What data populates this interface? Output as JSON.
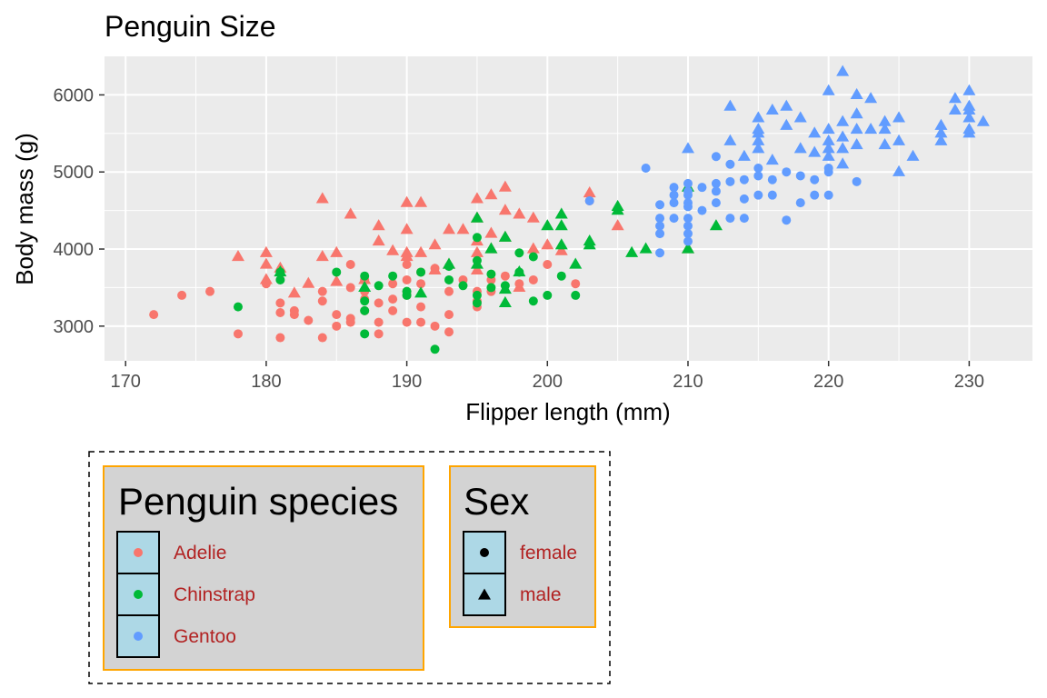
{
  "colors": {
    "panel_bg": "#EBEBEB",
    "grid": "#FFFFFF",
    "Adelie": "#F8766D",
    "Chinstrap": "#00BA38",
    "Gentoo": "#619CFF",
    "legend_bg": "#D3D3D3",
    "legend_border": "#FFA500",
    "legend_key_bg": "#ADD8E6",
    "legend_text": "#B22222"
  },
  "chart_data": {
    "type": "scatter",
    "title": "Penguin Size",
    "xlabel": "Flipper length (mm)",
    "ylabel": "Body mass (g)",
    "xlim": [
      168.5,
      234.5
    ],
    "ylim": [
      2550,
      6500
    ],
    "x_ticks": [
      170,
      180,
      190,
      200,
      210,
      220,
      230
    ],
    "y_ticks": [
      3000,
      4000,
      5000,
      6000
    ],
    "grid": true,
    "legend_position": "bottom",
    "legend": {
      "color_title": "Penguin species",
      "color_entries": [
        "Adelie",
        "Chinstrap",
        "Gentoo"
      ],
      "shape_title": "Sex",
      "shape_entries": [
        "female",
        "male"
      ]
    },
    "series": [
      {
        "species": "Adelie",
        "sex": "female",
        "points": [
          [
            172,
            3150
          ],
          [
            174,
            3400
          ],
          [
            176,
            3450
          ],
          [
            178,
            2900
          ],
          [
            180,
            3550
          ],
          [
            181,
            3300
          ],
          [
            181,
            3175
          ],
          [
            181,
            2850
          ],
          [
            182,
            3200
          ],
          [
            182,
            3150
          ],
          [
            183,
            3075
          ],
          [
            184,
            3325
          ],
          [
            184,
            2850
          ],
          [
            184,
            3450
          ],
          [
            185,
            3150
          ],
          [
            185,
            3000
          ],
          [
            186,
            3800
          ],
          [
            186,
            3500
          ],
          [
            186,
            3100
          ],
          [
            186,
            3050
          ],
          [
            187,
            3450
          ],
          [
            187,
            3600
          ],
          [
            187,
            3350
          ],
          [
            187,
            3200
          ],
          [
            188,
            3050
          ],
          [
            188,
            2900
          ],
          [
            188,
            3300
          ],
          [
            189,
            3350
          ],
          [
            189,
            3200
          ],
          [
            189,
            3550
          ],
          [
            190,
            3050
          ],
          [
            190,
            3400
          ],
          [
            190,
            3600
          ],
          [
            190,
            3450
          ],
          [
            190,
            3800
          ],
          [
            191,
            3700
          ],
          [
            191,
            3050
          ],
          [
            191,
            3250
          ],
          [
            191,
            3550
          ],
          [
            192,
            3000
          ],
          [
            192,
            3750
          ],
          [
            193,
            2925
          ],
          [
            193,
            3150
          ],
          [
            193,
            3450
          ],
          [
            194,
            3600
          ],
          [
            195,
            3250
          ],
          [
            195,
            3325
          ],
          [
            195,
            3450
          ],
          [
            196,
            3450
          ],
          [
            196,
            3600
          ],
          [
            197,
            3650
          ],
          [
            198,
            3550
          ],
          [
            199,
            3600
          ],
          [
            200,
            3800
          ],
          [
            202,
            3550
          ],
          [
            203,
            4625
          ]
        ]
      },
      {
        "species": "Adelie",
        "sex": "male",
        "points": [
          [
            178,
            3900
          ],
          [
            180,
            3950
          ],
          [
            180,
            3800
          ],
          [
            180,
            3600
          ],
          [
            181,
            3750
          ],
          [
            182,
            3425
          ],
          [
            183,
            3550
          ],
          [
            184,
            4650
          ],
          [
            184,
            3900
          ],
          [
            185,
            3950
          ],
          [
            185,
            3575
          ],
          [
            186,
            4450
          ],
          [
            187,
            3600
          ],
          [
            188,
            4300
          ],
          [
            188,
            4100
          ],
          [
            189,
            3975
          ],
          [
            190,
            3950
          ],
          [
            190,
            4600
          ],
          [
            190,
            4250
          ],
          [
            190,
            3900
          ],
          [
            191,
            4600
          ],
          [
            191,
            3950
          ],
          [
            192,
            4050
          ],
          [
            192,
            3725
          ],
          [
            193,
            4250
          ],
          [
            193,
            3800
          ],
          [
            194,
            4250
          ],
          [
            195,
            4650
          ],
          [
            195,
            4400
          ],
          [
            195,
            4100
          ],
          [
            195,
            3950
          ],
          [
            195,
            3725
          ],
          [
            196,
            4700
          ],
          [
            196,
            4200
          ],
          [
            196,
            4000
          ],
          [
            197,
            4800
          ],
          [
            197,
            4500
          ],
          [
            197,
            4150
          ],
          [
            198,
            4450
          ],
          [
            198,
            3500
          ],
          [
            199,
            4400
          ],
          [
            199,
            4000
          ],
          [
            200,
            4050
          ],
          [
            201,
            3975
          ],
          [
            203,
            4725
          ],
          [
            205,
            4300
          ],
          [
            210,
            4000
          ]
        ]
      },
      {
        "species": "Chinstrap",
        "sex": "female",
        "points": [
          [
            178,
            3250
          ],
          [
            181,
            3700
          ],
          [
            181,
            3600
          ],
          [
            185,
            3700
          ],
          [
            187,
            3650
          ],
          [
            187,
            3325
          ],
          [
            187,
            3200
          ],
          [
            187,
            2900
          ],
          [
            188,
            3525
          ],
          [
            189,
            3650
          ],
          [
            190,
            3400
          ],
          [
            190,
            3450
          ],
          [
            191,
            3700
          ],
          [
            192,
            2700
          ],
          [
            193,
            3775
          ],
          [
            193,
            3600
          ],
          [
            194,
            3525
          ],
          [
            195,
            3400
          ],
          [
            195,
            3300
          ],
          [
            195,
            3850
          ],
          [
            195,
            4150
          ],
          [
            196,
            3675
          ],
          [
            196,
            3500
          ],
          [
            197,
            3525
          ],
          [
            198,
            3950
          ],
          [
            198,
            3700
          ],
          [
            199,
            3900
          ],
          [
            199,
            3325
          ],
          [
            200,
            3400
          ],
          [
            201,
            3650
          ],
          [
            202,
            3400
          ]
        ]
      },
      {
        "species": "Chinstrap",
        "sex": "male",
        "points": [
          [
            181,
            3700
          ],
          [
            187,
            3500
          ],
          [
            191,
            3425
          ],
          [
            193,
            3800
          ],
          [
            195,
            4400
          ],
          [
            195,
            3800
          ],
          [
            196,
            4000
          ],
          [
            197,
            3300
          ],
          [
            197,
            4150
          ],
          [
            197,
            3475
          ],
          [
            198,
            3700
          ],
          [
            200,
            4300
          ],
          [
            201,
            4450
          ],
          [
            201,
            4050
          ],
          [
            201,
            4300
          ],
          [
            202,
            3800
          ],
          [
            203,
            4100
          ],
          [
            203,
            4050
          ],
          [
            205,
            4500
          ],
          [
            205,
            4550
          ],
          [
            206,
            3950
          ],
          [
            207,
            4000
          ],
          [
            210,
            4800
          ],
          [
            210,
            4000
          ],
          [
            212,
            4300
          ]
        ]
      },
      {
        "species": "Gentoo",
        "sex": "female",
        "points": [
          [
            203,
            4625
          ],
          [
            207,
            5050
          ],
          [
            208,
            4575
          ],
          [
            208,
            4400
          ],
          [
            208,
            4300
          ],
          [
            208,
            4200
          ],
          [
            208,
            3950
          ],
          [
            209,
            4800
          ],
          [
            209,
            4700
          ],
          [
            209,
            4600
          ],
          [
            209,
            4400
          ],
          [
            210,
            4850
          ],
          [
            210,
            4750
          ],
          [
            210,
            4700
          ],
          [
            210,
            4600
          ],
          [
            210,
            4550
          ],
          [
            210,
            4400
          ],
          [
            210,
            4300
          ],
          [
            210,
            4200
          ],
          [
            210,
            4100
          ],
          [
            211,
            4500
          ],
          [
            211,
            4800
          ],
          [
            212,
            5200
          ],
          [
            212,
            4850
          ],
          [
            212,
            4750
          ],
          [
            212,
            4600
          ],
          [
            213,
            5100
          ],
          [
            213,
            4875
          ],
          [
            213,
            4400
          ],
          [
            214,
            4900
          ],
          [
            214,
            4650
          ],
          [
            214,
            4400
          ],
          [
            215,
            4950
          ],
          [
            215,
            4700
          ],
          [
            215,
            5050
          ],
          [
            216,
            4900
          ],
          [
            216,
            4700
          ],
          [
            217,
            5000
          ],
          [
            217,
            4375
          ],
          [
            218,
            4600
          ],
          [
            218,
            4950
          ],
          [
            219,
            4700
          ],
          [
            219,
            4900
          ],
          [
            220,
            5050
          ],
          [
            220,
            5000
          ],
          [
            220,
            4700
          ],
          [
            222,
            4875
          ]
        ]
      },
      {
        "species": "Gentoo",
        "sex": "male",
        "points": [
          [
            210,
            5300
          ],
          [
            213,
            5850
          ],
          [
            213,
            5400
          ],
          [
            214,
            5200
          ],
          [
            215,
            5700
          ],
          [
            215,
            5550
          ],
          [
            215,
            5500
          ],
          [
            215,
            5300
          ],
          [
            215,
            5400
          ],
          [
            216,
            5800
          ],
          [
            216,
            5150
          ],
          [
            217,
            5850
          ],
          [
            217,
            5600
          ],
          [
            218,
            5700
          ],
          [
            218,
            5300
          ],
          [
            219,
            5500
          ],
          [
            219,
            5250
          ],
          [
            220,
            6050
          ],
          [
            220,
            5550
          ],
          [
            220,
            5400
          ],
          [
            220,
            5300
          ],
          [
            220,
            5200
          ],
          [
            221,
            6300
          ],
          [
            221,
            5650
          ],
          [
            221,
            5450
          ],
          [
            221,
            5300
          ],
          [
            221,
            5100
          ],
          [
            222,
            6000
          ],
          [
            222,
            5750
          ],
          [
            222,
            5550
          ],
          [
            222,
            5350
          ],
          [
            223,
            5950
          ],
          [
            223,
            5550
          ],
          [
            224,
            5650
          ],
          [
            224,
            5550
          ],
          [
            224,
            5350
          ],
          [
            225,
            5700
          ],
          [
            225,
            5400
          ],
          [
            225,
            5000
          ],
          [
            226,
            5200
          ],
          [
            228,
            5600
          ],
          [
            228,
            5500
          ],
          [
            228,
            5400
          ],
          [
            229,
            5950
          ],
          [
            229,
            5800
          ],
          [
            230,
            6050
          ],
          [
            230,
            5850
          ],
          [
            230,
            5800
          ],
          [
            230,
            5700
          ],
          [
            230,
            5550
          ],
          [
            230,
            5500
          ],
          [
            231,
            5650
          ]
        ]
      }
    ]
  }
}
